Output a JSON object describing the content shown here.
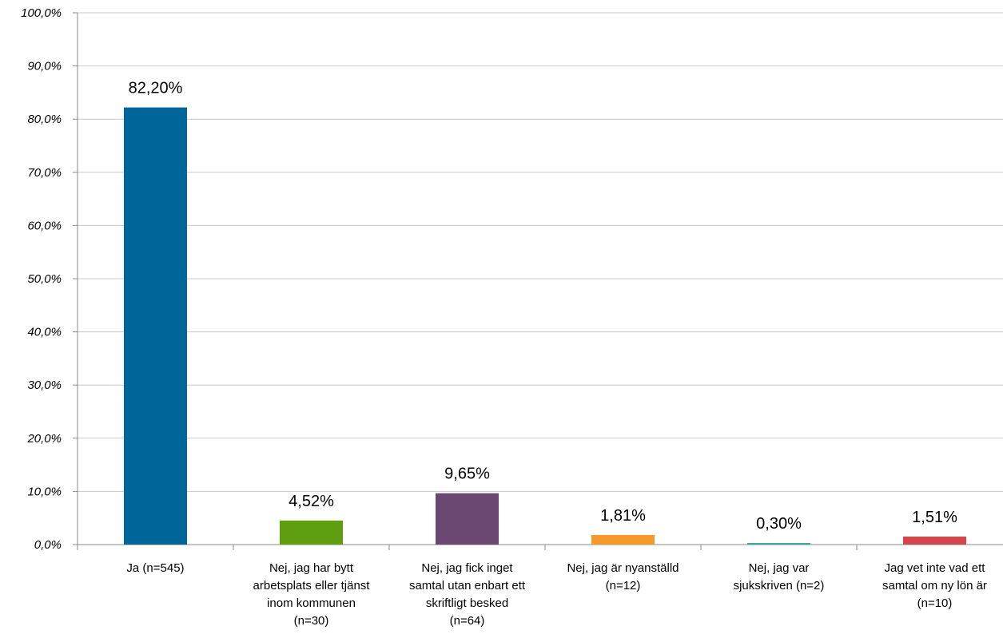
{
  "chart_data": {
    "type": "bar",
    "categories": [
      [
        "Ja (n=545)"
      ],
      [
        "Nej, jag har bytt",
        "arbetsplats eller tjänst",
        "inom kommunen",
        "(n=30)"
      ],
      [
        "Nej, jag fick inget",
        "samtal utan enbart ett",
        "skriftligt besked",
        "(n=64)"
      ],
      [
        "Nej, jag är nyanställd",
        "(n=12)"
      ],
      [
        "Nej, jag var",
        "sjukskriven (n=2)"
      ],
      [
        "Jag vet inte vad ett",
        "samtal om ny lön är",
        "(n=10)"
      ]
    ],
    "values": [
      82.2,
      4.52,
      9.65,
      1.81,
      0.3,
      1.51
    ],
    "data_labels": [
      "82,20%",
      "4,52%",
      "9,65%",
      "1,81%",
      "0,30%",
      "1,51%"
    ],
    "colors": [
      "#006699",
      "#5f9e0f",
      "#6b4872",
      "#f39a2b",
      "#3aa6a6",
      "#d2474b"
    ],
    "ylim": [
      0,
      100
    ],
    "yticks": [
      "0,0%",
      "10,0%",
      "20,0%",
      "30,0%",
      "40,0%",
      "50,0%",
      "60,0%",
      "70,0%",
      "80,0%",
      "90,0%",
      "100,0%"
    ],
    "grid": true,
    "gridColor": "#c8c8c8",
    "legend": "none"
  }
}
